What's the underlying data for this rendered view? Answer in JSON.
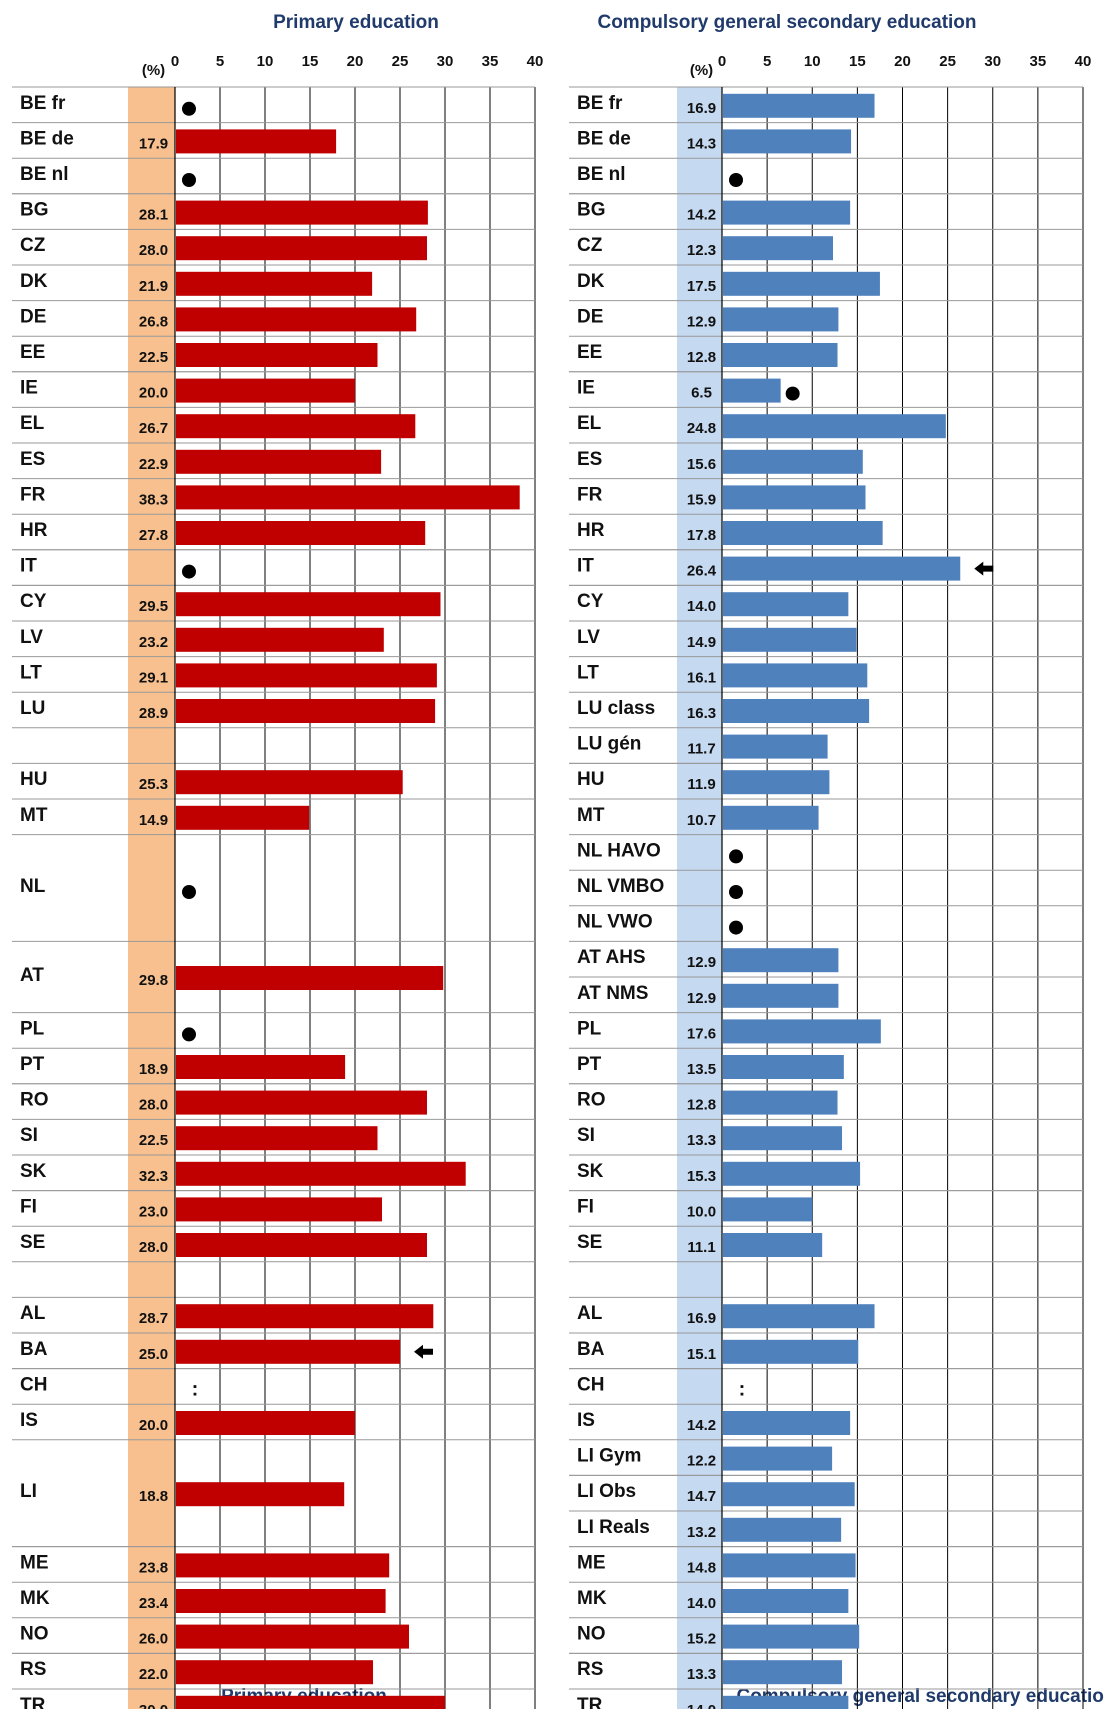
{
  "chart_data": [
    {
      "type": "bar",
      "title": "Primary education",
      "footer": "Primary education",
      "unit_label": "(%)",
      "xlim": [
        0,
        40
      ],
      "ticks": [
        0,
        5,
        10,
        15,
        20,
        25,
        30,
        35,
        40
      ],
      "bar_color": "#c00000",
      "column_color": "#f8c08e",
      "rows": [
        {
          "label": "BE fr",
          "value": null,
          "marker": "dot"
        },
        {
          "label": "BE de",
          "value": 17.9
        },
        {
          "label": "BE nl",
          "value": null,
          "marker": "dot"
        },
        {
          "label": "BG",
          "value": 28.1
        },
        {
          "label": "CZ",
          "value": 28.0
        },
        {
          "label": "DK",
          "value": 21.9
        },
        {
          "label": "DE",
          "value": 26.8
        },
        {
          "label": "EE",
          "value": 22.5
        },
        {
          "label": "IE",
          "value": 20.0
        },
        {
          "label": "EL",
          "value": 26.7
        },
        {
          "label": "ES",
          "value": 22.9
        },
        {
          "label": "FR",
          "value": 38.3
        },
        {
          "label": "HR",
          "value": 27.8
        },
        {
          "label": "IT",
          "value": null,
          "marker": "dot"
        },
        {
          "label": "CY",
          "value": 29.5
        },
        {
          "label": "LV",
          "value": 23.2
        },
        {
          "label": "LT",
          "value": 29.1
        },
        {
          "label": "LU",
          "value": 28.9
        },
        {
          "label": "HU",
          "value": 25.3
        },
        {
          "label": "MT",
          "value": 14.9
        },
        {
          "label": "NL",
          "value": null,
          "marker": "dot"
        },
        {
          "label": "AT",
          "value": 29.8
        },
        {
          "label": "PL",
          "value": null,
          "marker": "dot"
        },
        {
          "label": "PT",
          "value": 18.9
        },
        {
          "label": "RO",
          "value": 28.0
        },
        {
          "label": "SI",
          "value": 22.5
        },
        {
          "label": "SK",
          "value": 32.3
        },
        {
          "label": "FI",
          "value": 23.0
        },
        {
          "label": "SE",
          "value": 28.0
        },
        {
          "label": "AL",
          "value": 28.7
        },
        {
          "label": "BA",
          "value": 25.0,
          "marker": "arrow"
        },
        {
          "label": "CH",
          "value": null,
          "marker": "colon"
        },
        {
          "label": "IS",
          "value": 20.0
        },
        {
          "label": "LI",
          "value": 18.8
        },
        {
          "label": "ME",
          "value": 23.8
        },
        {
          "label": "MK",
          "value": 23.4
        },
        {
          "label": "NO",
          "value": 26.0
        },
        {
          "label": "RS",
          "value": 22.0
        },
        {
          "label": "TR",
          "value": 30.0
        }
      ]
    },
    {
      "type": "bar",
      "title": "Compulsory general secondary education",
      "footer": "Compulsory general secondary education",
      "unit_label": "(%)",
      "xlim": [
        0,
        40
      ],
      "ticks": [
        0,
        5,
        10,
        15,
        20,
        25,
        30,
        35,
        40
      ],
      "bar_color": "#4f81bd",
      "column_color": "#c5d9f1",
      "rows": [
        {
          "label": "BE fr",
          "value": 16.9
        },
        {
          "label": "BE de",
          "value": 14.3
        },
        {
          "label": "BE nl",
          "value": null,
          "marker": "dot"
        },
        {
          "label": "BG",
          "value": 14.2
        },
        {
          "label": "CZ",
          "value": 12.3
        },
        {
          "label": "DK",
          "value": 17.5
        },
        {
          "label": "DE",
          "value": 12.9
        },
        {
          "label": "EE",
          "value": 12.8
        },
        {
          "label": "IE",
          "value": 6.5,
          "marker": "dot"
        },
        {
          "label": "EL",
          "value": 24.8
        },
        {
          "label": "ES",
          "value": 15.6
        },
        {
          "label": "FR",
          "value": 15.9
        },
        {
          "label": "HR",
          "value": 17.8
        },
        {
          "label": "IT",
          "value": 26.4,
          "marker": "arrow"
        },
        {
          "label": "CY",
          "value": 14.0
        },
        {
          "label": "LV",
          "value": 14.9
        },
        {
          "label": "LT",
          "value": 16.1
        },
        {
          "label": "LU class",
          "value": 16.3
        },
        {
          "label": "LU gén",
          "value": 11.7
        },
        {
          "label": "HU",
          "value": 11.9
        },
        {
          "label": "MT",
          "value": 10.7
        },
        {
          "label": "NL HAVO",
          "value": null,
          "marker": "dot"
        },
        {
          "label": "NL VMBO",
          "value": null,
          "marker": "dot"
        },
        {
          "label": "NL VWO",
          "value": null,
          "marker": "dot"
        },
        {
          "label": "AT AHS",
          "value": 12.9
        },
        {
          "label": "AT NMS",
          "value": 12.9
        },
        {
          "label": "PL",
          "value": 17.6
        },
        {
          "label": "PT",
          "value": 13.5
        },
        {
          "label": "RO",
          "value": 12.8
        },
        {
          "label": "SI",
          "value": 13.3
        },
        {
          "label": "SK",
          "value": 15.3
        },
        {
          "label": "FI",
          "value": 10.0
        },
        {
          "label": "SE",
          "value": 11.1
        },
        {
          "label": "AL",
          "value": 16.9
        },
        {
          "label": "BA",
          "value": 15.1
        },
        {
          "label": "CH",
          "value": null,
          "marker": "colon"
        },
        {
          "label": "IS",
          "value": 14.2
        },
        {
          "label": "LI Gym",
          "value": 12.2
        },
        {
          "label": "LI Obs",
          "value": 14.7
        },
        {
          "label": "LI Reals",
          "value": 13.2
        },
        {
          "label": "ME",
          "value": 14.8
        },
        {
          "label": "MK",
          "value": 14.0
        },
        {
          "label": "NO",
          "value": 15.2
        },
        {
          "label": "RS",
          "value": 13.3
        },
        {
          "label": "TR",
          "value": 14.0
        }
      ]
    }
  ]
}
